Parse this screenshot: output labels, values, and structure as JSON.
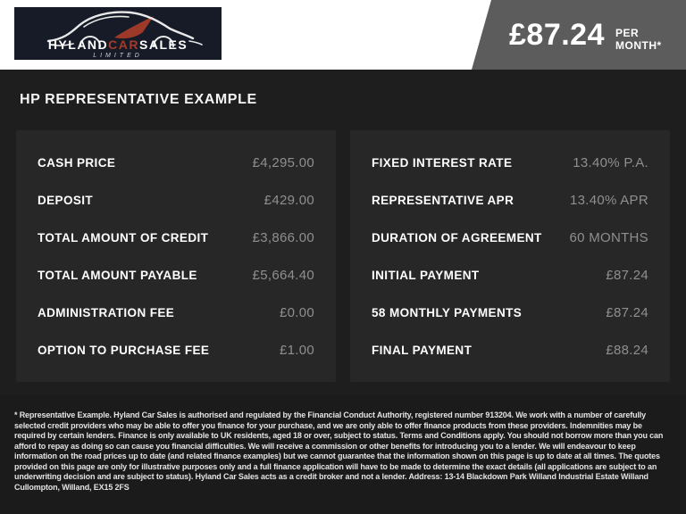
{
  "logo": {
    "name_part1": "HYLAND",
    "name_part2": "CAR",
    "name_part3": "SALES",
    "subtitle": "LIMITED"
  },
  "price_banner": {
    "amount": "£87.24",
    "suffix": "PER MONTH*"
  },
  "heading": "HP REPRESENTATIVE EXAMPLE",
  "finance": {
    "left": [
      {
        "label": "CASH PRICE",
        "value": "£4,295.00"
      },
      {
        "label": "DEPOSIT",
        "value": "£429.00"
      },
      {
        "label": "TOTAL AMOUNT OF CREDIT",
        "value": "£3,866.00"
      },
      {
        "label": "TOTAL AMOUNT PAYABLE",
        "value": "£5,664.40"
      },
      {
        "label": "ADMINISTRATION FEE",
        "value": "£0.00"
      },
      {
        "label": "OPTION TO PURCHASE FEE",
        "value": "£1.00"
      }
    ],
    "right": [
      {
        "label": "FIXED INTEREST RATE",
        "value": "13.40% P.A."
      },
      {
        "label": "REPRESENTATIVE APR",
        "value": "13.40% APR"
      },
      {
        "label": "DURATION OF AGREEMENT",
        "value": "60 MONTHS"
      },
      {
        "label": "INITIAL PAYMENT",
        "value": "£87.24"
      },
      {
        "label": "58 MONTHLY PAYMENTS",
        "value": "£87.24"
      },
      {
        "label": "FINAL PAYMENT",
        "value": "£88.24"
      }
    ]
  },
  "footer": {
    "disclaimer": "* Representative Example. Hyland Car Sales is authorised and regulated by the Financial Conduct Authority, registered number 913204. We work with a number of carefully selected credit providers who may be able to offer you finance for your purchase, and we are only able to offer finance products from these providers. Indemnities may be required by certain lenders. Finance is only available to UK residents, aged 18 or over, subject to status. Terms and Conditions apply. You should not borrow more than you can afford to repay as doing so can cause you financial difficulties. We will receive a commission or other benefits for introducing you to a lender. We will endeavour to keep information on the road prices up to date (and related finance examples) but we cannot guarantee that the information shown on this page is up to date at all times. The quotes provided on this page are only for illustrative purposes only and a full finance application will have to be made to determine the exact details (all applications are subject to an underwriting decision and are subject to status). Hyland Car Sales acts as a credit broker and not a lender. Address: 13-14 Blackdown Park Willand Industrial Estate Willand Cullompton, Willand, EX15 2FS"
  },
  "colors": {
    "accent_red": "#a33b28",
    "banner_gray": "#5c5c5c",
    "value_gray": "#8f8f8f",
    "logo_navy": "#161b27",
    "panel_dark": "#272727"
  }
}
